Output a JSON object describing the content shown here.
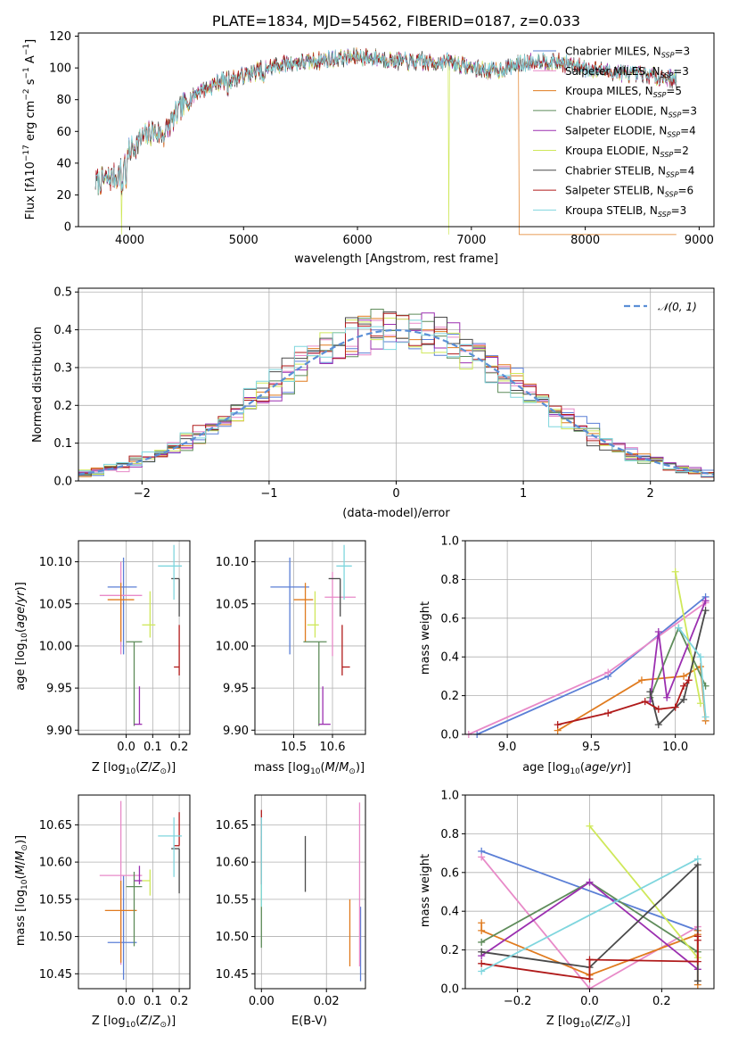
{
  "title": "PLATE=1834, MJD=54562, FIBERID=0187, z=0.033",
  "colors": {
    "chabrier_miles": "#5b7fd6",
    "salpeter_miles": "#e88ac8",
    "kroupa_miles": "#e07b1f",
    "chabrier_elodie": "#5e8c5a",
    "salpeter_elodie": "#9b2fb0",
    "kroupa_elodie": "#cfe85a",
    "chabrier_stelib": "#4a4a4a",
    "salpeter_stelib": "#b01a1a",
    "kroupa_stelib": "#7fd6de"
  },
  "chart_data": [
    {
      "type": "line",
      "title": "PLATE=1834, MJD=54562, FIBERID=0187, z=0.033",
      "xlabel": "wavelength [Angstrom, rest frame]",
      "ylabel": "Flux [fλ10⁻¹⁷ erg cm⁻² s⁻¹ A⁻¹]",
      "xlim": [
        3550,
        9130
      ],
      "ylim": [
        0,
        122
      ],
      "xticks": [
        "4000",
        "5000",
        "6000",
        "7000",
        "8000",
        "9000"
      ],
      "yticks": [
        "0",
        "20",
        "40",
        "60",
        "80",
        "100",
        "120"
      ],
      "legend_position": "top-right",
      "series": [
        {
          "name": "Chabrier MILES, N_SSP=3",
          "key": "chabrier_miles"
        },
        {
          "name": "Salpeter MILES, N_SSP=3",
          "key": "salpeter_miles"
        },
        {
          "name": "Kroupa MILES, N_SSP=5",
          "key": "kroupa_miles"
        },
        {
          "name": "Chabrier ELODIE, N_SSP=3",
          "key": "chabrier_elodie"
        },
        {
          "name": "Salpeter ELODIE, N_SSP=4",
          "key": "salpeter_elodie"
        },
        {
          "name": "Kroupa ELODIE, N_SSP=2",
          "key": "kroupa_elodie"
        },
        {
          "name": "Chabrier STELIB, N_SSP=4",
          "key": "chabrier_stelib"
        },
        {
          "name": "Salpeter STELIB, N_SSP=6",
          "key": "salpeter_stelib"
        },
        {
          "name": "Kroupa STELIB, N_SSP=3",
          "key": "kroupa_stelib"
        }
      ],
      "continuum": {
        "x": [
          3700,
          3800,
          3900,
          4000,
          4100,
          4200,
          4300,
          4400,
          4500,
          4600,
          4700,
          4800,
          4900,
          5000,
          5200,
          5400,
          5600,
          5800,
          6000,
          6200,
          6400,
          6600,
          6800,
          7000,
          7200,
          7400,
          7600,
          7800,
          8000,
          8200,
          8400,
          8600,
          8800
        ],
        "y": [
          28,
          30,
          32,
          48,
          55,
          60,
          58,
          70,
          78,
          85,
          88,
          92,
          93,
          95,
          100,
          103,
          104,
          106,
          107,
          106,
          104,
          103,
          104,
          100,
          98,
          102,
          105,
          103,
          100,
          98,
          96,
          95,
          93
        ]
      },
      "drops": [
        {
          "key": "kroupa_elodie",
          "x": 3930
        },
        {
          "key": "kroupa_elodie",
          "x": 6800
        },
        {
          "key": "kroupa_miles",
          "x": 7420
        }
      ]
    },
    {
      "type": "histogram",
      "xlabel": "(data-model)/error",
      "ylabel": "Normed distribution",
      "xlim": [
        -2.5,
        2.5
      ],
      "ylim": [
        0,
        0.51
      ],
      "xticks": [
        -2,
        -1,
        0,
        1,
        2
      ],
      "yticks": [
        0.0,
        0.1,
        0.2,
        0.3,
        0.4,
        0.5
      ],
      "bin_width": 0.1,
      "reference_label": "𝒩(0, 1)",
      "reference_color": "#5b8fd6",
      "legend_position": "top-right"
    },
    {
      "type": "scatter",
      "xlabel": "Z [log10(Z/Z☉)]",
      "ylabel": "age  [log10(age/yr)]",
      "xlim": [
        -0.18,
        0.24
      ],
      "ylim": [
        9.895,
        10.125
      ],
      "xticks": [
        "0.0",
        "0.1",
        "0.2"
      ],
      "yticks": [
        "9.90",
        "9.95",
        "10.00",
        "10.05",
        "10.10"
      ],
      "points": [
        {
          "key": "chabrier_miles",
          "x": -0.01,
          "y": 10.07,
          "xerr": [
            0.06,
            0.05
          ],
          "yerr": [
            0.08,
            0.035
          ]
        },
        {
          "key": "salpeter_miles",
          "x": -0.02,
          "y": 10.06,
          "xerr": [
            0.08,
            0.08
          ],
          "yerr": [
            0.07,
            0.04
          ]
        },
        {
          "key": "kroupa_miles",
          "x": -0.02,
          "y": 10.055,
          "xerr": [
            0.05,
            0.05
          ],
          "yerr": [
            0.05,
            0.02
          ]
        },
        {
          "key": "chabrier_elodie",
          "x": 0.03,
          "y": 10.005,
          "xerr": [
            0.03,
            0.03
          ],
          "yerr": [
            0.1,
            0.0
          ]
        },
        {
          "key": "salpeter_elodie",
          "x": 0.05,
          "y": 9.907,
          "xerr": [
            0.02,
            0.01
          ],
          "yerr": [
            0.0,
            0.045
          ]
        },
        {
          "key": "kroupa_elodie",
          "x": 0.09,
          "y": 10.025,
          "xerr": [
            0.03,
            0.02
          ],
          "yerr": [
            0.015,
            0.04
          ]
        },
        {
          "key": "chabrier_stelib",
          "x": 0.2,
          "y": 10.08,
          "xerr": [
            0.03,
            0.0
          ],
          "yerr": [
            0.045,
            0.0
          ]
        },
        {
          "key": "salpeter_stelib",
          "x": 0.2,
          "y": 9.975,
          "xerr": [
            0.02,
            0.0
          ],
          "yerr": [
            0.01,
            0.05
          ]
        },
        {
          "key": "kroupa_stelib",
          "x": 0.18,
          "y": 10.095,
          "xerr": [
            0.06,
            0.03
          ],
          "yerr": [
            0.04,
            0.025
          ]
        }
      ]
    },
    {
      "type": "scatter",
      "xlabel": "mass [log10(M/M☉)]",
      "ylabel": "",
      "xlim": [
        10.4,
        10.685
      ],
      "ylim": [
        9.895,
        10.125
      ],
      "xticks": [
        "10.5",
        "10.6"
      ],
      "yticks": [
        "9.90",
        "9.95",
        "10.00",
        "10.05",
        "10.10"
      ],
      "points": [
        {
          "key": "chabrier_miles",
          "x": 10.49,
          "y": 10.07,
          "xerr": [
            0.05,
            0.05
          ],
          "yerr": [
            0.08,
            0.035
          ]
        },
        {
          "key": "salpeter_miles",
          "x": 10.6,
          "y": 10.058,
          "xerr": [
            0.02,
            0.06
          ],
          "yerr": [
            0.07,
            0.03
          ]
        },
        {
          "key": "kroupa_miles",
          "x": 10.53,
          "y": 10.055,
          "xerr": [
            0.03,
            0.02
          ],
          "yerr": [
            0.05,
            0.02
          ]
        },
        {
          "key": "chabrier_elodie",
          "x": 10.565,
          "y": 10.005,
          "xerr": [
            0.04,
            0.02
          ],
          "yerr": [
            0.1,
            0.0
          ]
        },
        {
          "key": "salpeter_elodie",
          "x": 10.575,
          "y": 9.907,
          "xerr": [
            0.01,
            0.02
          ],
          "yerr": [
            0.0,
            0.045
          ]
        },
        {
          "key": "kroupa_elodie",
          "x": 10.555,
          "y": 10.025,
          "xerr": [
            0.02,
            0.01
          ],
          "yerr": [
            0.015,
            0.04
          ]
        },
        {
          "key": "chabrier_stelib",
          "x": 10.62,
          "y": 10.08,
          "xerr": [
            0.03,
            0.0
          ],
          "yerr": [
            0.045,
            0.0
          ]
        },
        {
          "key": "salpeter_stelib",
          "x": 10.625,
          "y": 9.975,
          "xerr": [
            0.0,
            0.02
          ],
          "yerr": [
            0.01,
            0.05
          ]
        },
        {
          "key": "kroupa_stelib",
          "x": 10.63,
          "y": 10.095,
          "xerr": [
            0.02,
            0.02
          ],
          "yerr": [
            0.04,
            0.025
          ]
        }
      ]
    },
    {
      "type": "line",
      "xlabel": "age  [log10(age/yr)]",
      "ylabel": "mass weight",
      "xlim": [
        8.75,
        10.23
      ],
      "ylim": [
        0,
        1.0
      ],
      "xticks": [
        "9.0",
        "9.5",
        "10.0"
      ],
      "yticks": [
        "0.0",
        "0.2",
        "0.4",
        "0.6",
        "0.8",
        "1.0"
      ],
      "series": [
        {
          "key": "chabrier_miles",
          "x": [
            8.82,
            9.6,
            10.18
          ],
          "y": [
            0.0,
            0.3,
            0.71
          ]
        },
        {
          "key": "salpeter_miles",
          "x": [
            8.77,
            9.6,
            10.18
          ],
          "y": [
            0.0,
            0.32,
            0.68
          ]
        },
        {
          "key": "kroupa_miles",
          "x": [
            9.3,
            9.8,
            10.05,
            10.15,
            10.18
          ],
          "y": [
            0.02,
            0.28,
            0.3,
            0.35,
            0.07
          ]
        },
        {
          "key": "chabrier_elodie",
          "x": [
            9.85,
            10.02,
            10.18
          ],
          "y": [
            0.19,
            0.55,
            0.25
          ]
        },
        {
          "key": "salpeter_elodie",
          "x": [
            9.85,
            9.9,
            9.95,
            10.18
          ],
          "y": [
            0.17,
            0.53,
            0.19,
            0.69
          ]
        },
        {
          "key": "kroupa_elodie",
          "x": [
            10.0,
            10.15
          ],
          "y": [
            0.84,
            0.16
          ]
        },
        {
          "key": "chabrier_stelib",
          "x": [
            9.85,
            9.9,
            10.05,
            10.18
          ],
          "y": [
            0.22,
            0.05,
            0.18,
            0.64
          ]
        },
        {
          "key": "salpeter_stelib",
          "x": [
            9.3,
            9.6,
            9.82,
            9.9,
            10.0,
            10.05,
            10.08
          ],
          "y": [
            0.05,
            0.11,
            0.17,
            0.13,
            0.14,
            0.25,
            0.28
          ]
        },
        {
          "key": "kroupa_stelib",
          "x": [
            10.02,
            10.15,
            10.18
          ],
          "y": [
            0.55,
            0.4,
            0.09
          ]
        }
      ]
    },
    {
      "type": "scatter",
      "xlabel": "Z [log10(Z/Z☉)]",
      "ylabel": "mass [log10(M/M☉)]",
      "xlim": [
        -0.18,
        0.24
      ],
      "ylim": [
        10.43,
        10.69
      ],
      "xticks": [
        "0.0",
        "0.1",
        "0.2"
      ],
      "yticks": [
        "10.45",
        "10.50",
        "10.55",
        "10.60",
        "10.65"
      ],
      "points": [
        {
          "key": "chabrier_miles",
          "x": -0.01,
          "y": 10.492,
          "xerr": [
            0.06,
            0.05
          ],
          "yerr": [
            0.05,
            0.09
          ]
        },
        {
          "key": "salpeter_miles",
          "x": -0.02,
          "y": 10.582,
          "xerr": [
            0.08,
            0.08
          ],
          "yerr": [
            0.12,
            0.1
          ]
        },
        {
          "key": "kroupa_miles",
          "x": -0.02,
          "y": 10.535,
          "xerr": [
            0.06,
            0.06
          ],
          "yerr": [
            0.07,
            0.04
          ]
        },
        {
          "key": "chabrier_elodie",
          "x": 0.03,
          "y": 10.567,
          "xerr": [
            0.03,
            0.03
          ],
          "yerr": [
            0.08,
            0.02
          ]
        },
        {
          "key": "salpeter_elodie",
          "x": 0.05,
          "y": 10.575,
          "xerr": [
            0.02,
            0.01
          ],
          "yerr": [
            0.005,
            0.02
          ]
        },
        {
          "key": "kroupa_elodie",
          "x": 0.09,
          "y": 10.575,
          "xerr": [
            0.03,
            0.0
          ],
          "yerr": [
            0.02,
            0.015
          ]
        },
        {
          "key": "chabrier_stelib",
          "x": 0.2,
          "y": 10.618,
          "xerr": [
            0.03,
            0.0
          ],
          "yerr": [
            0.06,
            0.0
          ]
        },
        {
          "key": "salpeter_stelib",
          "x": 0.2,
          "y": 10.622,
          "xerr": [
            0.02,
            0.0
          ],
          "yerr": [
            0.0,
            0.045
          ]
        },
        {
          "key": "kroupa_stelib",
          "x": 0.18,
          "y": 10.635,
          "xerr": [
            0.06,
            0.03
          ],
          "yerr": [
            0.055,
            0.025
          ]
        }
      ]
    },
    {
      "type": "scatter",
      "xlabel": "E(B-V)",
      "ylabel": "",
      "xlim": [
        -0.002,
        0.032
      ],
      "ylim": [
        10.43,
        10.69
      ],
      "xticks": [
        "0.00",
        "0.02"
      ],
      "yticks": [
        "10.45",
        "10.50",
        "10.55",
        "10.60",
        "10.65"
      ],
      "points": [
        {
          "key": "chabrier_elodie",
          "x": 0.0,
          "y": 10.55,
          "yerr": [
            0.065,
            0.085
          ]
        },
        {
          "key": "kroupa_elodie",
          "x": 0.0,
          "y": 10.58,
          "yerr": [
            0.04,
            0.02
          ]
        },
        {
          "key": "salpeter_stelib",
          "x": 0.0,
          "y": 10.62,
          "yerr": [
            0.05,
            0.05
          ]
        },
        {
          "key": "kroupa_stelib",
          "x": 0.0,
          "y": 10.6,
          "yerr": [
            0.06,
            0.06
          ]
        },
        {
          "key": "chabrier_stelib",
          "x": 0.0135,
          "y": 10.595,
          "yerr": [
            0.035,
            0.04
          ]
        },
        {
          "key": "kroupa_miles",
          "x": 0.0272,
          "y": 10.505,
          "yerr": [
            0.045,
            0.045
          ]
        },
        {
          "key": "chabrier_miles",
          "x": 0.0305,
          "y": 10.48,
          "yerr": [
            0.04,
            0.06
          ]
        },
        {
          "key": "salpeter_miles",
          "x": 0.0302,
          "y": 10.58,
          "yerr": [
            0.12,
            0.1
          ]
        }
      ]
    },
    {
      "type": "line",
      "xlabel": "Z [log10(Z/Z☉)]",
      "ylabel": "mass weight",
      "xlim": [
        -0.345,
        0.345
      ],
      "ylim": [
        0,
        1.0
      ],
      "xticks": [
        "−0.2",
        "0.0",
        "0.2"
      ],
      "yticks": [
        "0.0",
        "0.2",
        "0.4",
        "0.6",
        "0.8",
        "1.0"
      ],
      "series": [
        {
          "key": "chabrier_miles",
          "x": [
            -0.3,
            0.3
          ],
          "y": [
            0.71,
            0.3
          ]
        },
        {
          "key": "salpeter_miles",
          "x": [
            -0.3,
            0.0,
            0.3
          ],
          "y": [
            0.68,
            0.0,
            0.32
          ]
        },
        {
          "key": "kroupa_miles",
          "x": [
            -0.3,
            -0.3,
            0.0,
            0.3,
            0.3,
            0.3
          ],
          "y": [
            0.34,
            0.3,
            0.07,
            0.28,
            0.02,
            0.3
          ]
        },
        {
          "key": "chabrier_elodie",
          "x": [
            -0.3,
            0.0,
            0.3
          ],
          "y": [
            0.24,
            0.55,
            0.19
          ]
        },
        {
          "key": "salpeter_elodie",
          "x": [
            -0.3,
            0.0,
            0.3
          ],
          "y": [
            0.17,
            0.55,
            0.1
          ]
        },
        {
          "key": "kroupa_elodie",
          "x": [
            0.0,
            0.3
          ],
          "y": [
            0.84,
            0.16
          ]
        },
        {
          "key": "chabrier_stelib",
          "x": [
            -0.3,
            0.0,
            0.3,
            0.3
          ],
          "y": [
            0.19,
            0.11,
            0.64,
            0.04
          ]
        },
        {
          "key": "salpeter_stelib",
          "x": [
            -0.3,
            0.0,
            0.0,
            0.3,
            0.3,
            0.3
          ],
          "y": [
            0.13,
            0.05,
            0.15,
            0.14,
            0.27,
            0.25
          ]
        },
        {
          "key": "kroupa_stelib",
          "x": [
            -0.3,
            0.3
          ],
          "y": [
            0.09,
            0.67
          ]
        }
      ]
    }
  ]
}
